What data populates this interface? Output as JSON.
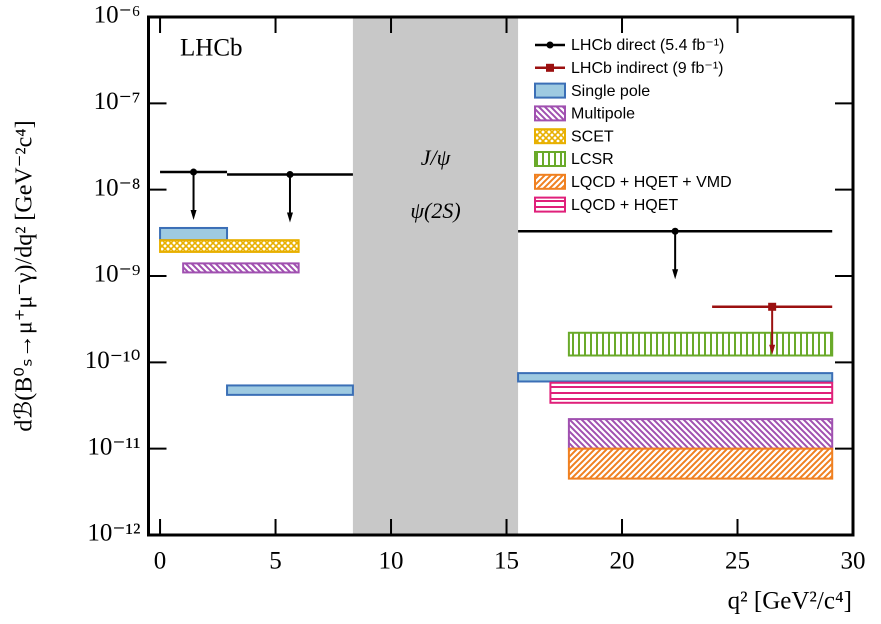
{
  "chart_data": {
    "type": "limit-bands",
    "x_label": "q² [GeV²/c⁴]",
    "y_label": "dℬ(B⁰ₛ→μ⁺μ⁻γ)/dq² [GeV⁻²c⁴]",
    "annotations": [
      "LHCb"
    ],
    "xlim": [
      -0.5,
      30
    ],
    "xticks": [
      0,
      5,
      10,
      15,
      20,
      25,
      30
    ],
    "ylim": [
      1e-12,
      1e-06
    ],
    "log_y": true,
    "yticks": [
      {
        "value": 1e-12,
        "label": "10⁻¹²"
      },
      {
        "value": 1e-11,
        "label": "10⁻¹¹"
      },
      {
        "value": 1e-10,
        "label": "10⁻¹⁰"
      },
      {
        "value": 1e-09,
        "label": "10⁻⁹"
      },
      {
        "value": 1e-08,
        "label": "10⁻⁸"
      },
      {
        "value": 1e-07,
        "label": "10⁻⁷"
      },
      {
        "value": 1e-06,
        "label": "10⁻⁶"
      }
    ],
    "shaded": {
      "x": [
        8.35,
        15.5
      ],
      "color": "#c8c8c8",
      "labels": [
        "J/ψ",
        "ψ(2S)"
      ]
    },
    "legend": "upper right",
    "series": [
      {
        "name": "LHCb direct (5.4 fb⁻¹)",
        "color": "#000000",
        "kind": "limit",
        "marker": "circle",
        "bins": [
          [
            0,
            2.9
          ],
          [
            2.9,
            8.35
          ],
          [
            15.5,
            29.1
          ]
        ],
        "values": [
          1.6e-08,
          1.5e-08,
          3.3e-09
        ]
      },
      {
        "name": "LHCb indirect (9 fb⁻¹)",
        "color": "#9b1010",
        "kind": "limit",
        "marker": "square",
        "bins": [
          [
            23.9,
            29.1
          ]
        ],
        "values": [
          4.4e-10
        ]
      },
      {
        "name": "Single pole",
        "color": "#3b6fb6",
        "fill": "#9ecae1",
        "kind": "band",
        "pattern": "solid",
        "bands": [
          {
            "x": [
              0,
              2.9
            ],
            "y": [
              2.6e-09,
              3.6e-09
            ]
          },
          {
            "x": [
              2.9,
              8.35
            ],
            "y": [
              4.2e-11,
              5.4e-11
            ]
          },
          {
            "x": [
              15.5,
              29.1
            ],
            "y": [
              6e-11,
              7.5e-11
            ]
          }
        ]
      },
      {
        "name": "Multipole",
        "color": "#a050b0",
        "kind": "band",
        "pattern": "back-diagonal",
        "bands": [
          {
            "x": [
              1.0,
              6.0
            ],
            "y": [
              1.1e-09,
              1.4e-09
            ]
          },
          {
            "x": [
              17.7,
              29.1
            ],
            "y": [
              1e-11,
              2.2e-11
            ]
          }
        ]
      },
      {
        "name": "SCET",
        "color": "#e8b000",
        "kind": "band",
        "pattern": "cross",
        "bands": [
          {
            "x": [
              0,
              6.0
            ],
            "y": [
              1.9e-09,
              2.6e-09
            ]
          }
        ]
      },
      {
        "name": "LCSR",
        "color": "#6aaa2a",
        "kind": "band",
        "pattern": "vertical",
        "bands": [
          {
            "x": [
              17.7,
              29.1
            ],
            "y": [
              1.2e-10,
              2.2e-10
            ]
          }
        ]
      },
      {
        "name": "LQCD + HQET + VMD",
        "color": "#f08020",
        "kind": "band",
        "pattern": "diagonal",
        "bands": [
          {
            "x": [
              17.7,
              29.1
            ],
            "y": [
              4.5e-12,
              1e-11
            ]
          }
        ]
      },
      {
        "name": "LQCD + HQET",
        "color": "#e0207a",
        "kind": "band",
        "pattern": "horizontal",
        "bands": [
          {
            "x": [
              16.9,
              29.1
            ],
            "y": [
              3.4e-11,
              5.8e-11
            ]
          }
        ]
      }
    ]
  }
}
